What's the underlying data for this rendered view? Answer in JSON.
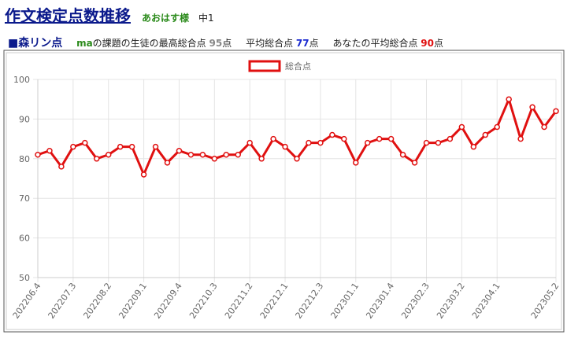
{
  "header": {
    "title": "作文検定点数推移",
    "user": "あおはす様",
    "grade": "中1"
  },
  "summary": {
    "name": "■森リン点",
    "subject": "ma",
    "max_label": "の課題の生徒の最高総合点",
    "max_value": "95",
    "unit1": "点",
    "avg_label": "平均総合点",
    "avg_value": "77",
    "unit2": "点",
    "my_label": "あなたの平均総合点",
    "my_value": "90",
    "unit3": "点"
  },
  "chart_data": {
    "type": "line",
    "grid": true,
    "categories": [
      "202206.4",
      null,
      null,
      "202207.3",
      null,
      null,
      "202208.2",
      null,
      null,
      "202209.1",
      null,
      null,
      "202209.4",
      null,
      null,
      "202210.3",
      null,
      null,
      "202211.2",
      null,
      null,
      "202212.1",
      null,
      null,
      "202212.3",
      null,
      null,
      "202301.1",
      null,
      null,
      "202301.4",
      null,
      null,
      "202302.3",
      null,
      null,
      "202303.2",
      null,
      null,
      "202304.1",
      null,
      null,
      null,
      null,
      "202305.2"
    ],
    "series": [
      {
        "name": "総合点",
        "color": "#e01010",
        "values": [
          81,
          82,
          78,
          83,
          84,
          80,
          81,
          83,
          83,
          76,
          83,
          79,
          82,
          81,
          81,
          80,
          81,
          81,
          84,
          80,
          85,
          83,
          80,
          84,
          84,
          86,
          85,
          79,
          84,
          85,
          85,
          81,
          79,
          84,
          84,
          85,
          88,
          83,
          86,
          88,
          95,
          85,
          93,
          88,
          92
        ]
      }
    ],
    "ylim": [
      50,
      100
    ],
    "yticks": [
      50,
      60,
      70,
      80,
      90,
      100
    ]
  }
}
